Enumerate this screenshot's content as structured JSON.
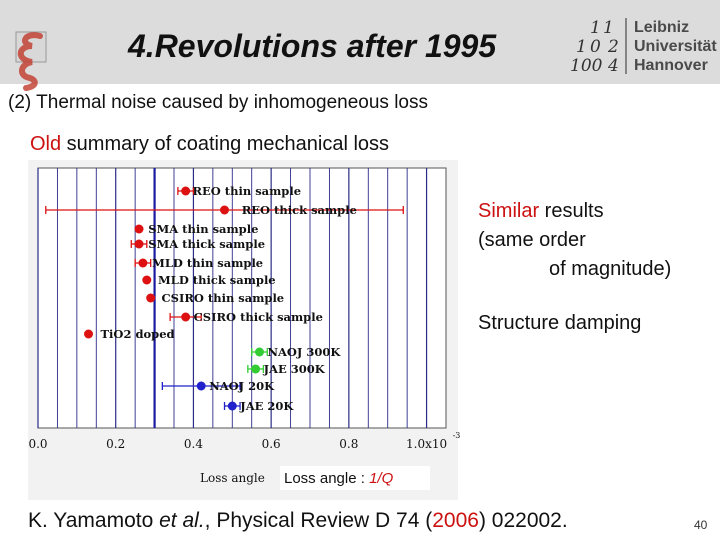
{
  "slide": {
    "title": "4.Revolutions after 1995",
    "subtitle": "(2) Thermal noise caused by inhomogeneous loss",
    "summary": {
      "old": "Old",
      "rest": " summary of coating mechanical loss"
    },
    "similar": {
      "word": "Similar",
      "rest": " results",
      "line2": "(same order",
      "line3": "of magnitude)"
    },
    "structure": "Structure damping",
    "citation": {
      "author": "K. Yamamoto ",
      "etal": "et al.",
      "journal": ", Physical Review D 74 (",
      "year": "2006",
      "tail": ") 022002."
    },
    "page_number": "40"
  },
  "logo": {
    "left_icon": "xi-logo-icon",
    "right_numbers": [
      "1",
      "1",
      "1",
      "0",
      "2",
      "100",
      "4"
    ],
    "right_text": [
      "Leibniz",
      "Universität",
      "Hannover"
    ]
  },
  "chart_data": {
    "type": "scatter",
    "x_axis_label": "Loss angle",
    "x_exponent": "-3",
    "caption": {
      "prefix": "Loss angle : ",
      "value": "1/Q"
    },
    "x_tick_labels": [
      "0.0",
      "0.2",
      "0.4",
      "0.6",
      "0.8",
      "1.0x10"
    ],
    "xlim": [
      0,
      1.05
    ],
    "reference_line": 0.3,
    "points": [
      {
        "label": "REO thin sample",
        "x": 0.38,
        "err_low": 0.02,
        "err_high": 0.02,
        "color": "#dd1111"
      },
      {
        "label": "REO thick sample",
        "x": 0.48,
        "err_low": 0.46,
        "err_high": 0.46,
        "color": "#dd1111"
      },
      {
        "label": "SMA thin sample",
        "x": 0.26,
        "err_low": 0.0,
        "err_high": 0.0,
        "color": "#dd1111"
      },
      {
        "label": "SMA thick sample",
        "x": 0.26,
        "err_low": 0.02,
        "err_high": 0.02,
        "color": "#dd1111"
      },
      {
        "label": "MLD thin sample",
        "x": 0.27,
        "err_low": 0.02,
        "err_high": 0.02,
        "color": "#dd1111"
      },
      {
        "label": "MLD thick sample",
        "x": 0.28,
        "err_low": 0.0,
        "err_high": 0.0,
        "color": "#dd1111"
      },
      {
        "label": "CSIRO thin sample",
        "x": 0.29,
        "err_low": 0.0,
        "err_high": 0.0,
        "color": "#dd1111"
      },
      {
        "label": "CSIRO thick sample",
        "x": 0.38,
        "err_low": 0.04,
        "err_high": 0.04,
        "color": "#dd1111"
      },
      {
        "label": "TiO2 doped",
        "x": 0.13,
        "err_low": 0.0,
        "err_high": 0.0,
        "color": "#dd1111"
      },
      {
        "label": "NAOJ 300K",
        "x": 0.57,
        "err_low": 0.02,
        "err_high": 0.02,
        "color": "#33cc33"
      },
      {
        "label": "JAE 300K",
        "x": 0.56,
        "err_low": 0.02,
        "err_high": 0.02,
        "color": "#33cc33"
      },
      {
        "label": "NAOJ 20K",
        "x": 0.42,
        "err_low": 0.1,
        "err_high": 0.1,
        "color": "#2222cc"
      },
      {
        "label": "JAE 20K",
        "x": 0.5,
        "err_low": 0.02,
        "err_high": 0.02,
        "color": "#2222cc"
      }
    ]
  }
}
